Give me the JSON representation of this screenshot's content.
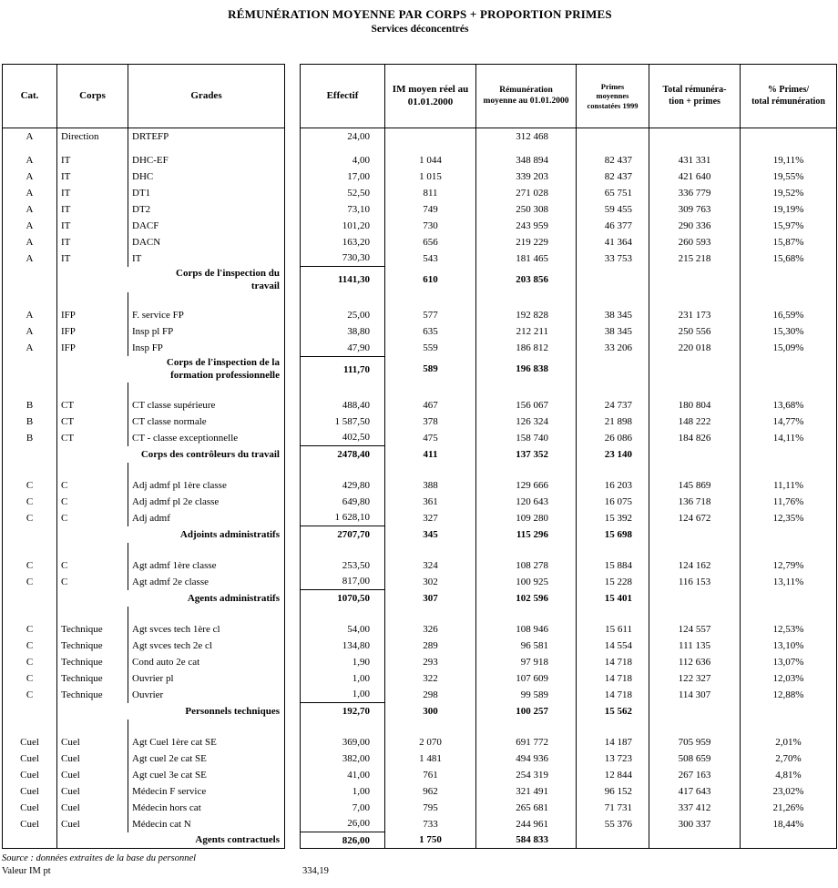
{
  "title": "RÉMUNÉRATION MOYENNE PAR CORPS + PROPORTION PRIMES",
  "subtitle": "Services déconcentrés",
  "columns": {
    "cat": "Cat.",
    "corps": "Corps",
    "grades": "Grades",
    "effectif": "Effectif",
    "im": "IM moyen réel au\n01.01.2000",
    "rem": "Rémunération\nmoyenne au 01.01.2000",
    "primes": "Primes\nmoyennes\nconstatées 1999",
    "total": "Total rémunéra-\ntion + primes",
    "pct": "% Primes/\ntotal rémunération"
  },
  "rows": [
    {
      "type": "data",
      "cat": "A",
      "corps": "Direction",
      "grade": "DRTEFP",
      "effectif": "24,00",
      "im": "",
      "rem": "312 468",
      "primes": "",
      "total": "",
      "pct": ""
    },
    {
      "type": "spacer",
      "size": "small"
    },
    {
      "type": "data",
      "cat": "A",
      "corps": "IT",
      "grade": "DHC-EF",
      "effectif": "4,00",
      "im": "1 044",
      "rem": "348 894",
      "primes": "82 437",
      "total": "431 331",
      "pct": "19,11%"
    },
    {
      "type": "data",
      "cat": "A",
      "corps": "IT",
      "grade": "DHC",
      "effectif": "17,00",
      "im": "1 015",
      "rem": "339 203",
      "primes": "82 437",
      "total": "421 640",
      "pct": "19,55%"
    },
    {
      "type": "data",
      "cat": "A",
      "corps": "IT",
      "grade": "DT1",
      "effectif": "52,50",
      "im": "811",
      "rem": "271 028",
      "primes": "65 751",
      "total": "336 779",
      "pct": "19,52%"
    },
    {
      "type": "data",
      "cat": "A",
      "corps": "IT",
      "grade": "DT2",
      "effectif": "73,10",
      "im": "749",
      "rem": "250 308",
      "primes": "59 455",
      "total": "309 763",
      "pct": "19,19%"
    },
    {
      "type": "data",
      "cat": "A",
      "corps": "IT",
      "grade": "DACF",
      "effectif": "101,20",
      "im": "730",
      "rem": "243 959",
      "primes": "46 377",
      "total": "290 336",
      "pct": "15,97%"
    },
    {
      "type": "data",
      "cat": "A",
      "corps": "IT",
      "grade": "DACN",
      "effectif": "163,20",
      "im": "656",
      "rem": "219 229",
      "primes": "41 364",
      "total": "260 593",
      "pct": "15,87%"
    },
    {
      "type": "data",
      "cat": "A",
      "corps": "IT",
      "grade": "IT",
      "effectif": "730,30",
      "im": "543",
      "rem": "181 465",
      "primes": "33 753",
      "total": "215 218",
      "pct": "15,68%"
    },
    {
      "type": "group",
      "label": "Corps de l'inspection du\ntravail",
      "effectif": "1141,30",
      "im": "610",
      "rem": "203 856",
      "primes": ""
    },
    {
      "type": "spacer"
    },
    {
      "type": "data",
      "cat": "A",
      "corps": "IFP",
      "grade": "F. service FP",
      "effectif": "25,00",
      "im": "577",
      "rem": "192 828",
      "primes": "38 345",
      "total": "231 173",
      "pct": "16,59%"
    },
    {
      "type": "data",
      "cat": "A",
      "corps": "IFP",
      "grade": "Insp pl FP",
      "effectif": "38,80",
      "im": "635",
      "rem": "212 211",
      "primes": "38 345",
      "total": "250 556",
      "pct": "15,30%"
    },
    {
      "type": "data",
      "cat": "A",
      "corps": "IFP",
      "grade": "Insp FP",
      "effectif": "47,90",
      "im": "559",
      "rem": "186 812",
      "primes": "33 206",
      "total": "220 018",
      "pct": "15,09%"
    },
    {
      "type": "group",
      "label": "Corps de l'inspection de la\nformation professionnelle",
      "effectif": "111,70",
      "im": "589",
      "rem": "196 838",
      "primes": ""
    },
    {
      "type": "spacer"
    },
    {
      "type": "data",
      "cat": "B",
      "corps": "CT",
      "grade": "CT classe supérieure",
      "effectif": "488,40",
      "im": "467",
      "rem": "156 067",
      "primes": "24 737",
      "total": "180 804",
      "pct": "13,68%"
    },
    {
      "type": "data",
      "cat": "B",
      "corps": "CT",
      "grade": "CT classe normale",
      "effectif": "1 587,50",
      "im": "378",
      "rem": "126 324",
      "primes": "21 898",
      "total": "148 222",
      "pct": "14,77%"
    },
    {
      "type": "data",
      "cat": "B",
      "corps": "CT",
      "grade": "CT - classe exceptionnelle",
      "effectif": "402,50",
      "im": "475",
      "rem": "158 740",
      "primes": "26 086",
      "total": "184 826",
      "pct": "14,11%"
    },
    {
      "type": "group",
      "label": "Corps des contrôleurs du travail",
      "effectif": "2478,40",
      "im": "411",
      "rem": "137 352",
      "primes": "23 140"
    },
    {
      "type": "spacer"
    },
    {
      "type": "data",
      "cat": "C",
      "corps": "C",
      "grade": "Adj admf pl 1ère classe",
      "effectif": "429,80",
      "im": "388",
      "rem": "129 666",
      "primes": "16 203",
      "total": "145 869",
      "pct": "11,11%"
    },
    {
      "type": "data",
      "cat": "C",
      "corps": "C",
      "grade": "Adj admf pl 2e classe",
      "effectif": "649,80",
      "im": "361",
      "rem": "120 643",
      "primes": "16 075",
      "total": "136 718",
      "pct": "11,76%"
    },
    {
      "type": "data",
      "cat": "C",
      "corps": "C",
      "grade": "Adj admf",
      "effectif": "1 628,10",
      "im": "327",
      "rem": "109 280",
      "primes": "15 392",
      "total": "124 672",
      "pct": "12,35%"
    },
    {
      "type": "group",
      "label": "Adjoints administratifs",
      "effectif": "2707,70",
      "im": "345",
      "rem": "115 296",
      "primes": "15 698"
    },
    {
      "type": "spacer"
    },
    {
      "type": "data",
      "cat": "C",
      "corps": "C",
      "grade": "Agt admf 1ère classe",
      "effectif": "253,50",
      "im": "324",
      "rem": "108 278",
      "primes": "15 884",
      "total": "124 162",
      "pct": "12,79%"
    },
    {
      "type": "data",
      "cat": "C",
      "corps": "C",
      "grade": "Agt admf 2e classe",
      "effectif": "817,00",
      "im": "302",
      "rem": "100 925",
      "primes": "15 228",
      "total": "116 153",
      "pct": "13,11%"
    },
    {
      "type": "group",
      "label": "Agents administratifs",
      "effectif": "1070,50",
      "im": "307",
      "rem": "102 596",
      "primes": "15 401"
    },
    {
      "type": "spacer"
    },
    {
      "type": "data",
      "cat": "C",
      "corps": "Technique",
      "grade": "Agt svces tech 1ère cl",
      "effectif": "54,00",
      "im": "326",
      "rem": "108 946",
      "primes": "15 611",
      "total": "124 557",
      "pct": "12,53%"
    },
    {
      "type": "data",
      "cat": "C",
      "corps": "Technique",
      "grade": "Agt svces tech 2e cl",
      "effectif": "134,80",
      "im": "289",
      "rem": "96 581",
      "primes": "14 554",
      "total": "111 135",
      "pct": "13,10%"
    },
    {
      "type": "data",
      "cat": "C",
      "corps": "Technique",
      "grade": "Cond auto 2e cat",
      "effectif": "1,90",
      "im": "293",
      "rem": "97 918",
      "primes": "14 718",
      "total": "112 636",
      "pct": "13,07%"
    },
    {
      "type": "data",
      "cat": "C",
      "corps": "Technique",
      "grade": "Ouvrier pl",
      "effectif": "1,00",
      "im": "322",
      "rem": "107 609",
      "primes": "14 718",
      "total": "122 327",
      "pct": "12,03%"
    },
    {
      "type": "data",
      "cat": "C",
      "corps": "Technique",
      "grade": "Ouvrier",
      "effectif": "1,00",
      "im": "298",
      "rem": "99 589",
      "primes": "14 718",
      "total": "114 307",
      "pct": "12,88%"
    },
    {
      "type": "group",
      "label": "Personnels techniques",
      "effectif": "192,70",
      "im": "300",
      "rem": "100 257",
      "primes": "15 562"
    },
    {
      "type": "spacer"
    },
    {
      "type": "data",
      "cat": "Cuel",
      "corps": "Cuel",
      "grade": "Agt Cuel 1ère cat SE",
      "effectif": "369,00",
      "im": "2 070",
      "rem": "691 772",
      "primes": "14 187",
      "total": "705 959",
      "pct": "2,01%"
    },
    {
      "type": "data",
      "cat": "Cuel",
      "corps": "Cuel",
      "grade": "Agt cuel 2e cat SE",
      "effectif": "382,00",
      "im": "1 481",
      "rem": "494 936",
      "primes": "13 723",
      "total": "508 659",
      "pct": "2,70%"
    },
    {
      "type": "data",
      "cat": "Cuel",
      "corps": "Cuel",
      "grade": "Agt cuel 3e cat SE",
      "effectif": "41,00",
      "im": "761",
      "rem": "254 319",
      "primes": "12 844",
      "total": "267 163",
      "pct": "4,81%"
    },
    {
      "type": "data",
      "cat": "Cuel",
      "corps": "Cuel",
      "grade": "Médecin F service",
      "effectif": "1,00",
      "im": "962",
      "rem": "321 491",
      "primes": "96 152",
      "total": "417 643",
      "pct": "23,02%"
    },
    {
      "type": "data",
      "cat": "Cuel",
      "corps": "Cuel",
      "grade": "Médecin hors cat",
      "effectif": "7,00",
      "im": "795",
      "rem": "265 681",
      "primes": "71 731",
      "total": "337 412",
      "pct": "21,26%"
    },
    {
      "type": "data",
      "cat": "Cuel",
      "corps": "Cuel",
      "grade": "Médecin cat N",
      "effectif": "26,00",
      "im": "733",
      "rem": "244 961",
      "primes": "55 376",
      "total": "300 337",
      "pct": "18,44%"
    },
    {
      "type": "group",
      "label": "Agents contractuels",
      "effectif": "826,00",
      "im": "1 750",
      "rem": "584 833",
      "primes": ""
    }
  ],
  "footer": {
    "source": "Source : données extraites de la base du personnel",
    "valeur_label": "Valeur IM pt",
    "valeur_value": "334,19"
  }
}
